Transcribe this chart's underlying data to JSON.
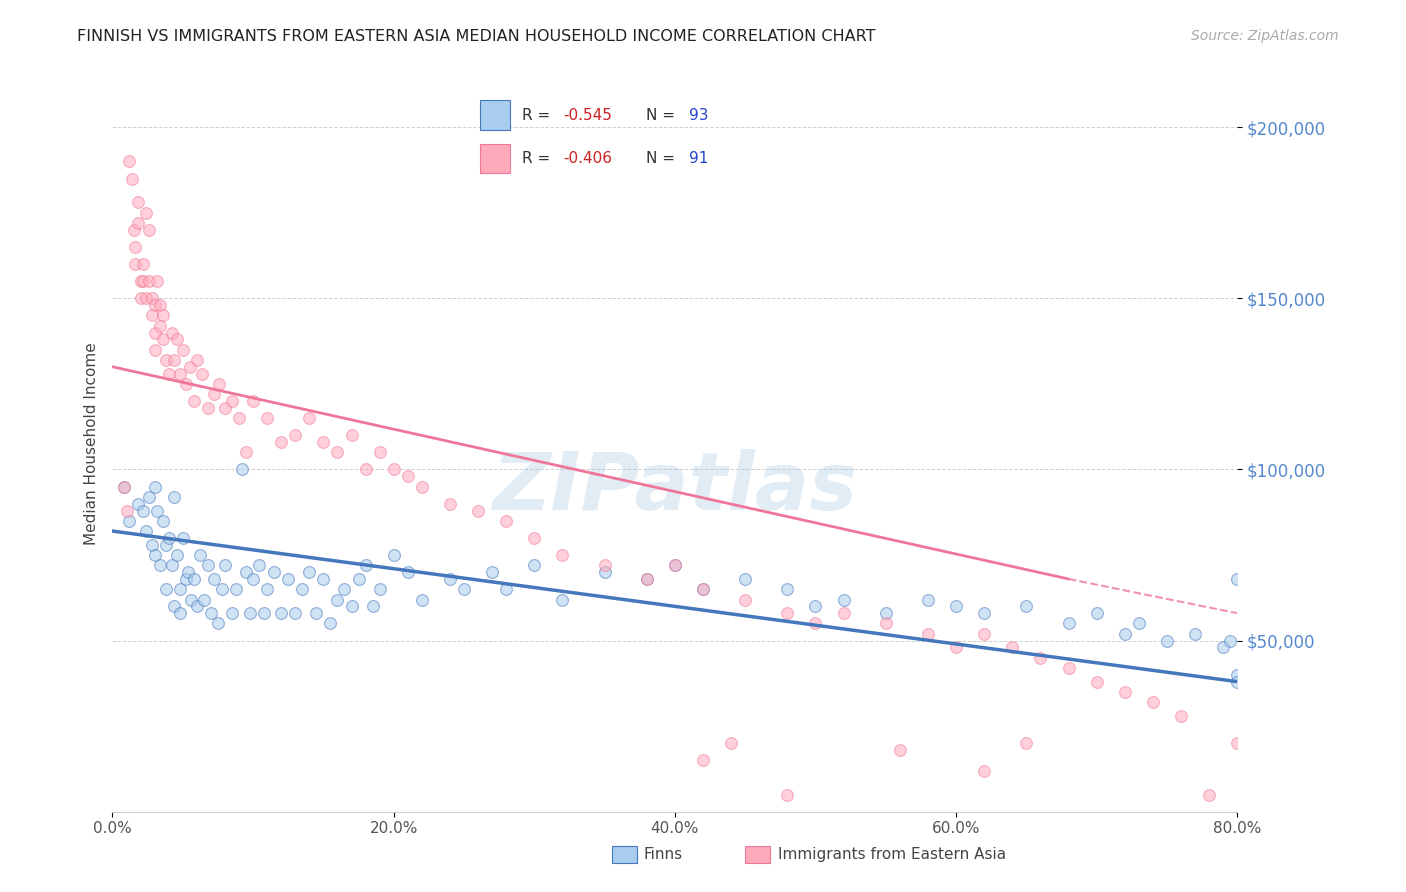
{
  "title": "FINNISH VS IMMIGRANTS FROM EASTERN ASIA MEDIAN HOUSEHOLD INCOME CORRELATION CHART",
  "source": "Source: ZipAtlas.com",
  "ylabel": "Median Household Income",
  "ytick_values": [
    50000,
    100000,
    150000,
    200000
  ],
  "ymin": 0,
  "ymax": 215000,
  "xmin": 0.0,
  "xmax": 0.8,
  "color_blue_edge": "#4477bb",
  "color_blue_fill": "#aaccee",
  "color_pink_edge": "#ee7799",
  "color_pink_fill": "#ffaabb",
  "regression_blue": [
    0.0,
    82000,
    0.8,
    38000
  ],
  "regression_pink_solid": [
    0.0,
    130000,
    0.68,
    68000
  ],
  "regression_pink_dashed": [
    0.68,
    68000,
    0.8,
    58000
  ],
  "watermark_text": "ZIPatlas",
  "legend_r1": "-0.545",
  "legend_n1": "93",
  "legend_r2": "-0.406",
  "legend_n2": "91",
  "legend_label1": "Finns",
  "legend_label2": "Immigrants from Eastern Asia",
  "scatter_alpha": 0.55,
  "scatter_size": 72,
  "finns_x": [
    0.008,
    0.012,
    0.018,
    0.022,
    0.024,
    0.026,
    0.028,
    0.03,
    0.03,
    0.032,
    0.034,
    0.036,
    0.038,
    0.038,
    0.04,
    0.042,
    0.044,
    0.044,
    0.046,
    0.048,
    0.048,
    0.05,
    0.052,
    0.054,
    0.056,
    0.058,
    0.06,
    0.062,
    0.065,
    0.068,
    0.07,
    0.072,
    0.075,
    0.078,
    0.08,
    0.085,
    0.088,
    0.092,
    0.095,
    0.098,
    0.1,
    0.104,
    0.108,
    0.11,
    0.115,
    0.12,
    0.125,
    0.13,
    0.135,
    0.14,
    0.145,
    0.15,
    0.155,
    0.16,
    0.165,
    0.17,
    0.175,
    0.18,
    0.185,
    0.19,
    0.2,
    0.21,
    0.22,
    0.24,
    0.25,
    0.27,
    0.28,
    0.3,
    0.32,
    0.35,
    0.38,
    0.4,
    0.42,
    0.45,
    0.48,
    0.5,
    0.52,
    0.55,
    0.58,
    0.6,
    0.62,
    0.65,
    0.68,
    0.7,
    0.72,
    0.73,
    0.75,
    0.77,
    0.79,
    0.795,
    0.8,
    0.8,
    0.8
  ],
  "finns_y": [
    95000,
    85000,
    90000,
    88000,
    82000,
    92000,
    78000,
    75000,
    95000,
    88000,
    72000,
    85000,
    78000,
    65000,
    80000,
    72000,
    60000,
    92000,
    75000,
    65000,
    58000,
    80000,
    68000,
    70000,
    62000,
    68000,
    60000,
    75000,
    62000,
    72000,
    58000,
    68000,
    55000,
    65000,
    72000,
    58000,
    65000,
    100000,
    70000,
    58000,
    68000,
    72000,
    58000,
    65000,
    70000,
    58000,
    68000,
    58000,
    65000,
    70000,
    58000,
    68000,
    55000,
    62000,
    65000,
    60000,
    68000,
    72000,
    60000,
    65000,
    75000,
    70000,
    62000,
    68000,
    65000,
    70000,
    65000,
    72000,
    62000,
    70000,
    68000,
    72000,
    65000,
    68000,
    65000,
    60000,
    62000,
    58000,
    62000,
    60000,
    58000,
    60000,
    55000,
    58000,
    52000,
    55000,
    50000,
    52000,
    48000,
    50000,
    40000,
    38000,
    68000
  ],
  "eastern_asia_x": [
    0.008,
    0.01,
    0.012,
    0.014,
    0.015,
    0.016,
    0.016,
    0.018,
    0.018,
    0.02,
    0.02,
    0.022,
    0.022,
    0.024,
    0.024,
    0.026,
    0.026,
    0.028,
    0.028,
    0.03,
    0.03,
    0.03,
    0.032,
    0.034,
    0.034,
    0.036,
    0.036,
    0.038,
    0.04,
    0.042,
    0.044,
    0.046,
    0.048,
    0.05,
    0.052,
    0.055,
    0.058,
    0.06,
    0.064,
    0.068,
    0.072,
    0.076,
    0.08,
    0.085,
    0.09,
    0.095,
    0.1,
    0.11,
    0.12,
    0.13,
    0.14,
    0.15,
    0.16,
    0.17,
    0.18,
    0.19,
    0.2,
    0.21,
    0.22,
    0.24,
    0.26,
    0.28,
    0.3,
    0.32,
    0.35,
    0.38,
    0.4,
    0.42,
    0.45,
    0.48,
    0.5,
    0.52,
    0.55,
    0.58,
    0.6,
    0.62,
    0.64,
    0.66,
    0.68,
    0.7,
    0.72,
    0.74,
    0.76,
    0.78,
    0.8,
    0.44,
    0.42,
    0.56,
    0.48,
    0.62,
    0.65
  ],
  "eastern_asia_y": [
    95000,
    88000,
    190000,
    185000,
    170000,
    165000,
    160000,
    178000,
    172000,
    155000,
    150000,
    160000,
    155000,
    150000,
    175000,
    170000,
    155000,
    150000,
    145000,
    148000,
    140000,
    135000,
    155000,
    148000,
    142000,
    145000,
    138000,
    132000,
    128000,
    140000,
    132000,
    138000,
    128000,
    135000,
    125000,
    130000,
    120000,
    132000,
    128000,
    118000,
    122000,
    125000,
    118000,
    120000,
    115000,
    105000,
    120000,
    115000,
    108000,
    110000,
    115000,
    108000,
    105000,
    110000,
    100000,
    105000,
    100000,
    98000,
    95000,
    90000,
    88000,
    85000,
    80000,
    75000,
    72000,
    68000,
    72000,
    65000,
    62000,
    58000,
    55000,
    58000,
    55000,
    52000,
    48000,
    52000,
    48000,
    45000,
    42000,
    38000,
    35000,
    32000,
    28000,
    5000,
    20000,
    20000,
    15000,
    18000,
    5000,
    12000,
    20000
  ]
}
